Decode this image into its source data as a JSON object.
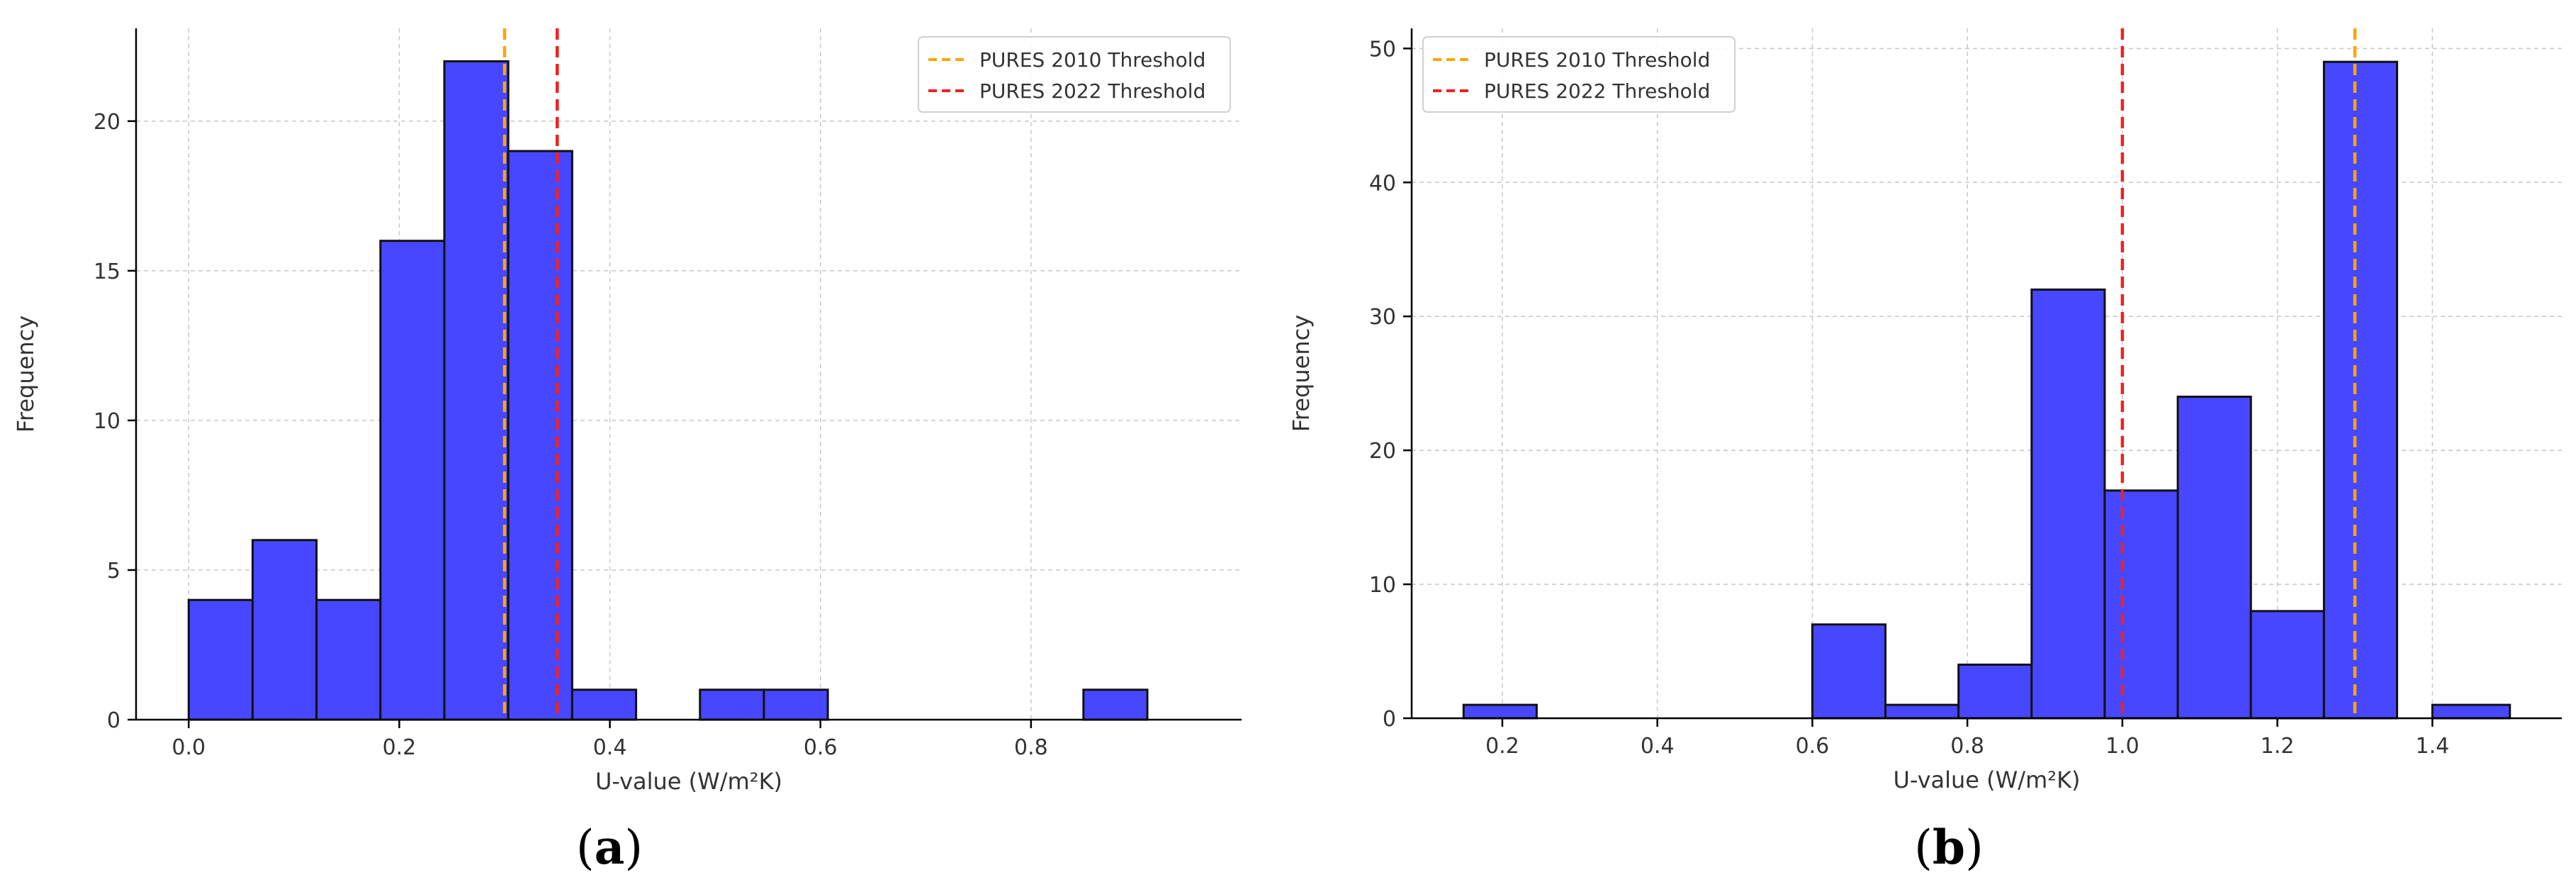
{
  "chart_data": [
    {
      "type": "bar",
      "panel_label": "(a)",
      "panel_letter": "a",
      "xlabel": "U-value (W/m²K)",
      "ylabel": "Frequency",
      "xlim": [
        -0.05,
        1.0
      ],
      "ylim": [
        0,
        23.1
      ],
      "xticks": [
        "0.0",
        "0.2",
        "0.4",
        "0.6",
        "0.8"
      ],
      "yticks": [
        "0",
        "5",
        "10",
        "15",
        "20"
      ],
      "grid": true,
      "legend_position": "top-right",
      "bin_edges": [
        0.0,
        0.0607,
        0.1214,
        0.1821,
        0.2428,
        0.3035,
        0.3642,
        0.4249,
        0.4856,
        0.5463,
        0.607,
        0.6677,
        0.7284,
        0.7891,
        0.8498,
        0.9105
      ],
      "counts": [
        4,
        6,
        4,
        16,
        22,
        19,
        1,
        0,
        1,
        1,
        0,
        0,
        0,
        0,
        1
      ],
      "bar_color": "#4747ff",
      "thresholds": [
        {
          "label": "PURES 2010 Threshold",
          "value": 0.3,
          "color": "#ffa500"
        },
        {
          "label": "PURES 2022 Threshold",
          "value": 0.35,
          "color": "#ee2222"
        }
      ]
    },
    {
      "type": "bar",
      "panel_label": "(b)",
      "panel_letter": "b",
      "xlabel": "U-value (W/m²K)",
      "ylabel": "Frequency",
      "xlim": [
        0.083,
        1.567
      ],
      "ylim": [
        0,
        51.5
      ],
      "xticks": [
        "0.2",
        "0.4",
        "0.6",
        "0.8",
        "1.0",
        "1.2",
        "1.4"
      ],
      "yticks": [
        "0",
        "10",
        "20",
        "30",
        "40",
        "50"
      ],
      "grid": true,
      "legend_position": "top-left",
      "bin_edges": [
        0.15,
        0.2443,
        0.3386,
        0.4329,
        0.5272,
        0.6,
        0.6943,
        0.7886,
        0.8829,
        0.9772,
        1.0715,
        1.1658,
        1.2601,
        1.3544,
        1.4,
        1.5
      ],
      "counts": [
        1,
        0,
        0,
        0,
        0,
        7,
        1,
        4,
        32,
        17,
        24,
        8,
        49,
        0,
        1
      ],
      "bar_color": "#4747ff",
      "thresholds": [
        {
          "label": "PURES 2010 Threshold",
          "value": 1.3,
          "color": "#ffa500"
        },
        {
          "label": "PURES 2022 Threshold",
          "value": 1.0,
          "color": "#ee2222"
        }
      ]
    }
  ]
}
